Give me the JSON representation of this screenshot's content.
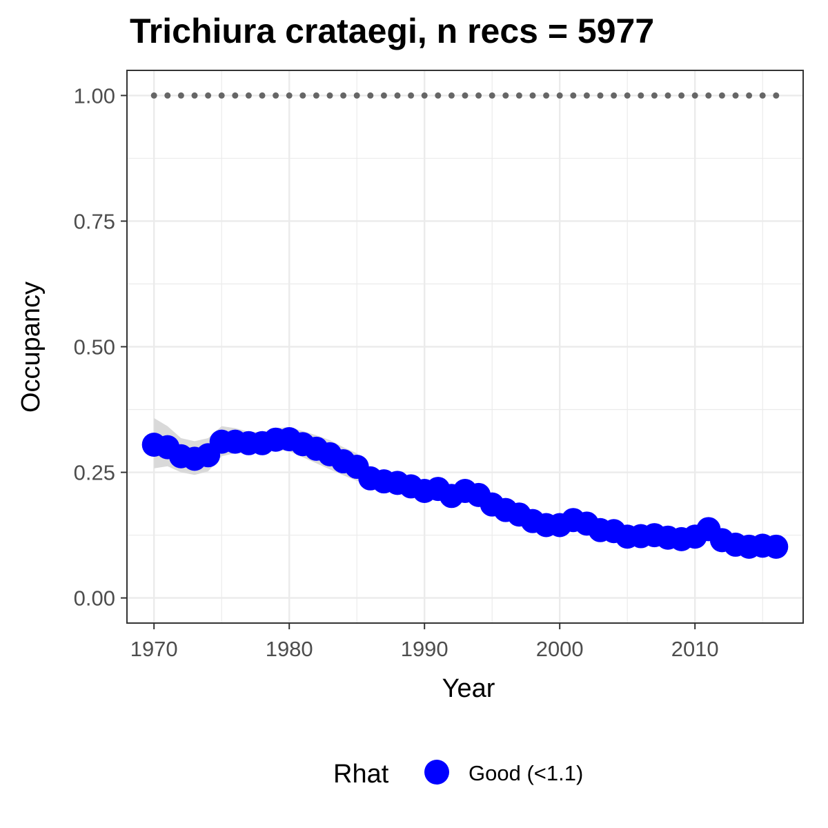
{
  "chart_data": {
    "type": "line",
    "title": "Trichiura crataegi, n recs = 5977",
    "xlabel": "Year",
    "ylabel": "Occupancy",
    "xlim": [
      1968,
      2018
    ],
    "ylim": [
      -0.05,
      1.05
    ],
    "x_ticks": [
      1970,
      1980,
      1990,
      2000,
      2010
    ],
    "y_ticks": [
      0.0,
      0.25,
      0.5,
      0.75,
      1.0
    ],
    "y_tick_labels": [
      "0.00",
      "0.25",
      "0.50",
      "0.75",
      "1.00"
    ],
    "grid": true,
    "legend": {
      "title": "Rhat",
      "position": "bottom",
      "entries": [
        {
          "label": "Good (<1.1)",
          "color": "#0000ff"
        }
      ]
    },
    "x": [
      1970,
      1971,
      1972,
      1973,
      1974,
      1975,
      1976,
      1977,
      1978,
      1979,
      1980,
      1981,
      1982,
      1983,
      1984,
      1985,
      1986,
      1987,
      1988,
      1989,
      1990,
      1991,
      1992,
      1993,
      1994,
      1995,
      1996,
      1997,
      1998,
      1999,
      2000,
      2001,
      2002,
      2003,
      2004,
      2005,
      2006,
      2007,
      2008,
      2009,
      2010,
      2011,
      2012,
      2013,
      2014,
      2015,
      2016
    ],
    "series": [
      {
        "type": "line-points",
        "color": "#0000ff",
        "legend_entry": "Good (<1.1)",
        "values": [
          0.305,
          0.3,
          0.282,
          0.277,
          0.284,
          0.311,
          0.311,
          0.308,
          0.308,
          0.315,
          0.316,
          0.306,
          0.297,
          0.286,
          0.272,
          0.261,
          0.238,
          0.232,
          0.229,
          0.222,
          0.213,
          0.217,
          0.203,
          0.213,
          0.205,
          0.186,
          0.175,
          0.166,
          0.153,
          0.145,
          0.145,
          0.155,
          0.148,
          0.135,
          0.133,
          0.122,
          0.123,
          0.125,
          0.12,
          0.117,
          0.122,
          0.137,
          0.115,
          0.106,
          0.102,
          0.104,
          0.102
        ],
        "ci_lower": [
          0.258,
          0.262,
          0.25,
          0.245,
          0.252,
          0.282,
          0.288,
          0.288,
          0.288,
          0.295,
          0.292,
          0.28,
          0.268,
          0.256,
          0.244,
          0.233,
          0.222,
          0.218,
          0.215,
          0.21,
          0.203,
          0.205,
          0.195,
          0.201,
          0.195,
          0.178,
          0.167,
          0.158,
          0.147,
          0.139,
          0.139,
          0.146,
          0.14,
          0.129,
          0.126,
          0.117,
          0.118,
          0.119,
          0.115,
          0.112,
          0.115,
          0.127,
          0.109,
          0.101,
          0.097,
          0.098,
          0.095
        ],
        "ci_upper": [
          0.358,
          0.342,
          0.318,
          0.312,
          0.318,
          0.342,
          0.338,
          0.331,
          0.33,
          0.338,
          0.34,
          0.332,
          0.324,
          0.314,
          0.3,
          0.288,
          0.256,
          0.247,
          0.243,
          0.235,
          0.225,
          0.23,
          0.213,
          0.226,
          0.217,
          0.195,
          0.184,
          0.175,
          0.16,
          0.152,
          0.152,
          0.165,
          0.157,
          0.142,
          0.141,
          0.128,
          0.129,
          0.132,
          0.126,
          0.123,
          0.13,
          0.148,
          0.122,
          0.112,
          0.108,
          0.111,
          0.11
        ],
        "ci_color": "#d9d9d9"
      },
      {
        "type": "dotted-line",
        "color": "#666666",
        "values": [
          1,
          1,
          1,
          1,
          1,
          1,
          1,
          1,
          1,
          1,
          1,
          1,
          1,
          1,
          1,
          1,
          1,
          1,
          1,
          1,
          1,
          1,
          1,
          1,
          1,
          1,
          1,
          1,
          1,
          1,
          1,
          1,
          1,
          1,
          1,
          1,
          1,
          1,
          1,
          1,
          1,
          1,
          1,
          1,
          1,
          1,
          1
        ]
      }
    ]
  },
  "colors": {
    "point": "#0000ff",
    "ribbon": "#d9d9d9",
    "reference": "#666666",
    "grid": "#ebebeb",
    "panel_border": "#333333"
  }
}
